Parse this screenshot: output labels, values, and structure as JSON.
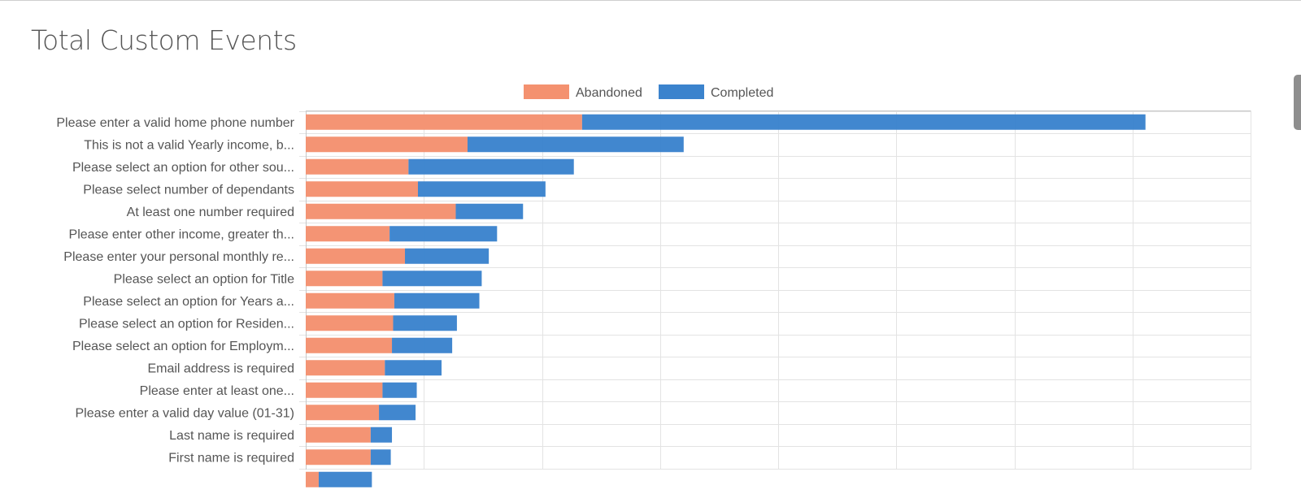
{
  "header": {
    "title": "Total Custom Events"
  },
  "chart_data": {
    "type": "bar",
    "orientation": "horizontal",
    "stacked": true,
    "grid": true,
    "legend_position": "top-center",
    "xlim": [
      0,
      800
    ],
    "x_gridlines": [
      0,
      100,
      200,
      300,
      400,
      500,
      600,
      700,
      800
    ],
    "categories": [
      "Please enter a valid home phone number",
      "This is not a valid  Yearly income, b...",
      "Please select an option for other sou...",
      "Please select number of dependants",
      "At least one number required",
      "Please enter other income, greater th...",
      "Please enter your personal monthly re...",
      "Please select an option  for  Title",
      "Please select an option  for  Years a...",
      "Please select an option  for  Residen...",
      "Please select an option  for  Employm...",
      "Email address is required",
      "Please enter at least one...",
      "Please enter a valid day value (01-31)",
      "Last name is required",
      "First name is required",
      ""
    ],
    "series": [
      {
        "name": "Abandoned",
        "color": "#f4916f",
        "values": [
          234,
          137,
          87,
          95,
          127,
          71,
          84,
          65,
          75,
          74,
          73,
          67,
          65,
          62,
          55,
          55,
          11
        ]
      },
      {
        "name": "Completed",
        "color": "#3b83cd",
        "values": [
          477,
          183,
          140,
          108,
          57,
          91,
          71,
          84,
          72,
          54,
          51,
          48,
          29,
          31,
          18,
          17,
          45
        ]
      }
    ]
  }
}
